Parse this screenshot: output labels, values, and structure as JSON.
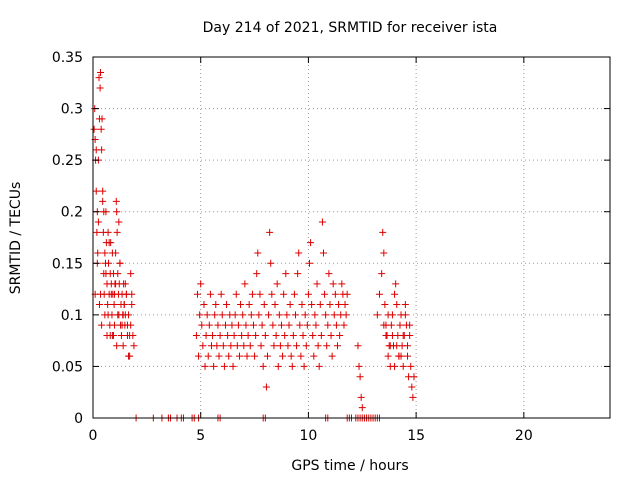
{
  "chart_data": {
    "type": "scatter",
    "title": "Day 214 of 2021, SRMTID for receiver ista",
    "xlabel": "GPS time / hours",
    "ylabel": "SRMTID / TECUs",
    "xlim": [
      0,
      24
    ],
    "ylim": [
      0,
      0.35
    ],
    "x_ticks": [
      "0",
      "5",
      "10",
      "15",
      "20"
    ],
    "y_ticks": [
      "0",
      "0.05",
      "0.1",
      "0.15",
      "0.2",
      "0.25",
      "0.3",
      "0.35"
    ],
    "grid": true,
    "marker": "plus",
    "marker_color": "#dd0000",
    "series": [
      {
        "x": [
          0.05,
          0.08,
          0.1,
          0.12,
          0.15,
          0.18,
          0.2,
          0.22,
          0.25,
          0.28,
          0.3,
          0.33,
          0.35,
          0.38,
          0.4,
          0.42,
          0.45,
          0.48,
          0.5,
          0.52,
          0.55,
          0.58,
          0.6,
          0.62,
          0.65,
          0.68,
          0.7,
          0.72,
          0.75,
          0.78,
          0.8,
          0.82,
          0.85,
          0.88,
          0.9,
          0.92,
          0.95,
          0.98,
          1.0,
          1.02,
          1.05,
          1.08,
          1.1,
          1.12,
          1.15,
          1.18,
          1.2,
          1.22,
          1.25,
          1.28,
          1.3,
          1.32,
          1.35,
          1.38,
          1.4,
          1.42,
          1.45,
          1.48,
          1.5,
          1.55,
          1.6,
          1.65,
          1.7,
          1.75,
          1.8,
          1.85,
          1.9,
          0.15,
          0.25,
          0.35,
          0.45,
          0.55,
          0.65,
          0.75,
          0.85,
          0.95,
          1.05,
          1.15,
          1.25,
          1.35,
          1.45,
          1.55,
          1.65,
          1.75,
          0.1,
          0.2,
          0.3,
          0.4,
          0.5,
          0.6,
          0.7,
          0.8,
          0.9,
          1.0,
          1.1,
          1.2,
          1.3,
          1.4,
          1.5,
          1.6,
          1.7,
          1.8
        ],
        "y": [
          0.28,
          0.3,
          0.27,
          0.25,
          0.22,
          0.18,
          0.2,
          0.16,
          0.25,
          0.33,
          0.29,
          0.32,
          0.335,
          0.28,
          0.26,
          0.29,
          0.21,
          0.18,
          0.14,
          0.12,
          0.16,
          0.15,
          0.2,
          0.17,
          0.13,
          0.11,
          0.18,
          0.15,
          0.12,
          0.09,
          0.14,
          0.17,
          0.13,
          0.1,
          0.08,
          0.12,
          0.14,
          0.11,
          0.09,
          0.13,
          0.16,
          0.21,
          0.2,
          0.18,
          0.14,
          0.12,
          0.1,
          0.13,
          0.15,
          0.09,
          0.11,
          0.08,
          0.12,
          0.1,
          0.07,
          0.13,
          0.11,
          0.09,
          0.1,
          0.12,
          0.08,
          0.1,
          0.06,
          0.09,
          0.11,
          0.08,
          0.07,
          0.26,
          0.19,
          0.12,
          0.22,
          0.1,
          0.08,
          0.17,
          0.12,
          0.08,
          0.13,
          0.1,
          0.15,
          0.09,
          0.11,
          0.12,
          0.06,
          0.14,
          0.12,
          0.15,
          0.11,
          0.09,
          0.2,
          0.14,
          0.1,
          0.08,
          0.16,
          0.12,
          0.07,
          0.19,
          0.11,
          0.1,
          0.13,
          0.09,
          0.08,
          0.12
        ]
      },
      {
        "x": [
          4.8,
          4.85,
          4.9,
          4.95,
          5.0,
          5.05,
          5.1,
          5.15,
          5.2,
          5.25,
          5.3,
          5.35,
          5.4,
          5.45,
          5.5,
          5.55,
          5.6,
          5.65,
          5.7,
          5.75,
          5.8,
          5.85,
          5.9,
          5.95,
          6.0,
          6.05,
          6.1,
          6.15,
          6.2,
          6.25,
          6.3,
          6.35,
          6.4,
          6.45,
          6.5,
          6.55,
          6.6,
          6.65,
          6.7,
          6.75,
          6.8,
          6.85,
          6.9,
          6.95,
          7.0,
          7.05,
          7.1,
          7.15,
          7.2,
          7.25,
          7.3,
          7.35,
          7.4,
          7.45,
          7.5,
          7.55,
          7.6,
          7.65,
          7.7,
          7.75,
          7.8,
          7.85,
          7.9,
          7.95,
          8.0,
          8.05,
          8.1,
          8.15,
          8.2,
          8.25,
          8.3,
          8.35,
          8.4,
          8.45,
          8.5,
          8.55,
          8.6,
          8.65,
          8.7,
          8.75,
          8.8,
          8.85,
          8.9,
          8.95,
          9.0,
          9.05,
          9.1,
          9.15,
          9.2,
          9.25,
          9.3,
          9.35,
          9.4,
          9.45,
          9.5,
          9.55,
          9.6,
          9.65,
          9.7,
          9.75,
          9.8,
          9.85,
          9.9,
          9.95,
          10.0,
          10.05,
          10.1,
          10.15,
          10.2,
          10.25,
          10.3,
          10.35,
          10.4,
          10.45,
          10.5,
          10.55,
          10.6,
          10.65,
          10.7,
          10.75,
          10.8,
          10.85,
          10.9,
          10.95,
          11.0,
          11.05,
          11.1,
          11.15,
          11.2,
          11.25,
          11.3,
          11.35,
          11.4,
          11.45,
          11.5,
          11.55,
          11.6,
          11.65,
          11.7,
          11.75,
          11.8
        ],
        "y": [
          0.08,
          0.12,
          0.06,
          0.1,
          0.13,
          0.09,
          0.07,
          0.11,
          0.05,
          0.08,
          0.1,
          0.06,
          0.09,
          0.12,
          0.07,
          0.08,
          0.05,
          0.1,
          0.11,
          0.07,
          0.09,
          0.06,
          0.08,
          0.12,
          0.1,
          0.07,
          0.05,
          0.09,
          0.11,
          0.08,
          0.06,
          0.1,
          0.07,
          0.09,
          0.05,
          0.08,
          0.1,
          0.12,
          0.07,
          0.09,
          0.06,
          0.11,
          0.08,
          0.1,
          0.07,
          0.13,
          0.09,
          0.06,
          0.08,
          0.11,
          0.07,
          0.1,
          0.12,
          0.09,
          0.06,
          0.08,
          0.14,
          0.16,
          0.1,
          0.12,
          0.07,
          0.09,
          0.05,
          0.11,
          0.08,
          0.03,
          0.06,
          0.1,
          0.18,
          0.15,
          0.12,
          0.09,
          0.07,
          0.11,
          0.08,
          0.13,
          0.05,
          0.1,
          0.07,
          0.09,
          0.06,
          0.12,
          0.08,
          0.14,
          0.1,
          0.07,
          0.09,
          0.11,
          0.06,
          0.05,
          0.08,
          0.12,
          0.1,
          0.07,
          0.14,
          0.16,
          0.09,
          0.06,
          0.11,
          0.08,
          0.05,
          0.1,
          0.07,
          0.09,
          0.12,
          0.15,
          0.17,
          0.11,
          0.08,
          0.06,
          0.1,
          0.09,
          0.13,
          0.07,
          0.05,
          0.11,
          0.08,
          0.19,
          0.16,
          0.12,
          0.1,
          0.07,
          0.09,
          0.14,
          0.11,
          0.08,
          0.06,
          0.13,
          0.1,
          0.12,
          0.09,
          0.07,
          0.11,
          0.08,
          0.1,
          0.13,
          0.12,
          0.09,
          0.11,
          0.1,
          0.12
        ]
      },
      {
        "x": [
          12.3,
          12.35,
          12.4,
          12.45,
          12.5,
          13.2,
          13.3,
          13.4,
          13.45,
          13.5,
          13.55,
          13.6,
          13.65,
          13.7,
          13.75,
          13.8,
          13.85,
          13.9,
          13.95,
          14.0,
          14.05,
          14.1,
          14.15,
          14.2,
          14.25,
          14.3,
          14.35,
          14.4,
          14.45,
          14.5,
          14.55,
          14.6,
          14.65,
          14.7,
          14.75,
          14.8,
          14.85,
          14.9,
          13.5,
          13.7,
          13.9,
          14.1,
          14.3,
          14.5,
          14.7,
          13.6,
          13.8,
          14.0,
          14.2,
          14.4,
          14.6
        ],
        "y": [
          0.07,
          0.05,
          0.04,
          0.02,
          0.01,
          0.1,
          0.12,
          0.14,
          0.18,
          0.16,
          0.11,
          0.09,
          0.08,
          0.06,
          0.07,
          0.05,
          0.09,
          0.1,
          0.07,
          0.12,
          0.13,
          0.11,
          0.08,
          0.06,
          0.09,
          0.1,
          0.07,
          0.05,
          0.08,
          0.11,
          0.09,
          0.06,
          0.04,
          0.08,
          0.05,
          0.03,
          0.02,
          0.04,
          0.09,
          0.1,
          0.08,
          0.07,
          0.06,
          0.1,
          0.09,
          0.08,
          0.07,
          0.05,
          0.06,
          0.08,
          0.07
        ]
      },
      {
        "x": [
          2.0,
          2.8,
          3.2,
          3.5,
          3.6,
          3.9,
          4.1,
          4.2,
          4.6,
          4.7,
          4.9,
          5.8,
          5.9,
          7.9,
          8.0,
          10.8,
          10.9,
          11.8,
          11.9,
          12.0,
          12.2,
          12.3,
          12.4,
          12.5,
          12.6,
          12.7,
          12.8,
          12.9,
          13.0,
          13.1,
          13.2,
          13.3
        ],
        "y": [
          0,
          0,
          0,
          0,
          0,
          0,
          0,
          0,
          0,
          0,
          0,
          0,
          0,
          0,
          0,
          0,
          0,
          0,
          0,
          0,
          0,
          0,
          0,
          0,
          0,
          0,
          0,
          0,
          0,
          0,
          0,
          0
        ]
      }
    ]
  }
}
